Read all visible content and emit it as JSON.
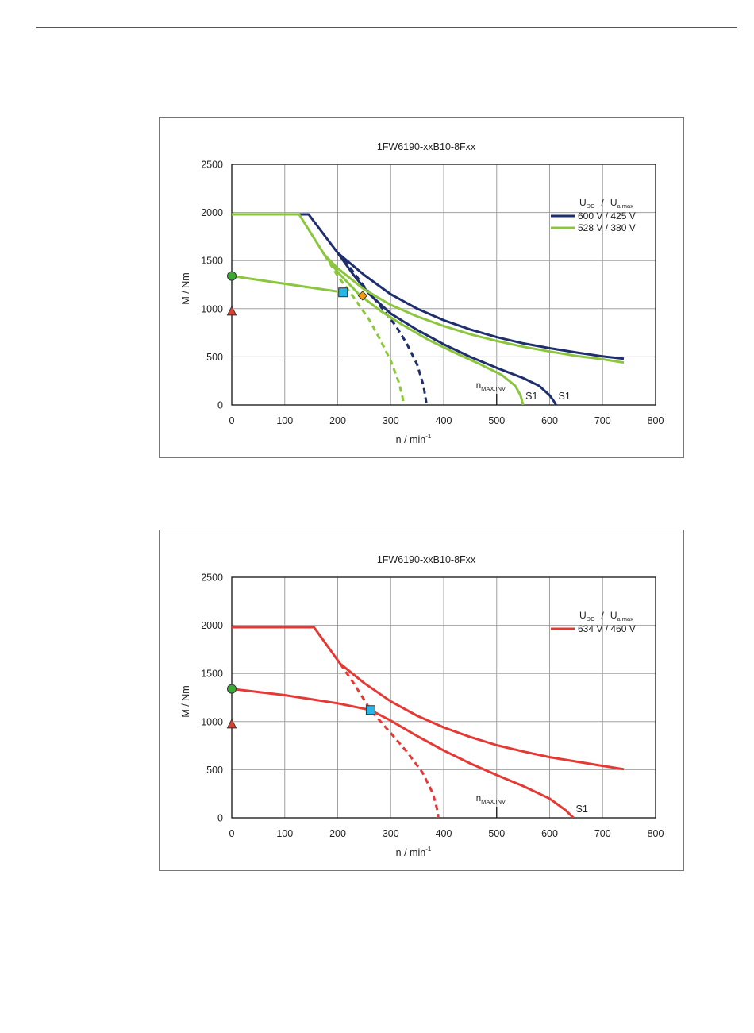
{
  "chart_data": [
    {
      "type": "line",
      "title": "1FW6190-xxB10-8Fxx",
      "xlabel": "n / min",
      "xlabel_sup": "-1",
      "ylabel": "M / Nm",
      "xlim": [
        0,
        800
      ],
      "ylim": [
        0,
        2500
      ],
      "xticks": [
        0,
        100,
        200,
        300,
        400,
        500,
        600,
        700,
        800
      ],
      "yticks": [
        0,
        500,
        1000,
        1500,
        2000,
        2500
      ],
      "grid": true,
      "legend": {
        "placement": "top-right",
        "header_U": "U",
        "header_dc": "DC",
        "header_slash": "/",
        "header_Ua": "U",
        "header_amax": "a max"
      },
      "series": [
        {
          "name": "600 V / 425 V",
          "color": "#1f2f6e",
          "curves": [
            {
              "style": "solid",
              "points": [
                [
                  0,
                  1980
                ],
                [
                  145,
                  1980
                ],
                [
                  200,
                  1580
                ],
                [
                  250,
                  1350
                ],
                [
                  300,
                  1150
                ],
                [
                  350,
                  1000
                ],
                [
                  400,
                  880
                ],
                [
                  450,
                  785
                ],
                [
                  500,
                  705
                ],
                [
                  550,
                  640
                ],
                [
                  600,
                  590
                ],
                [
                  650,
                  545
                ],
                [
                  700,
                  505
                ],
                [
                  740,
                  480
                ]
              ]
            },
            {
              "style": "solid",
              "points": [
                [
                  200,
                  1580
                ],
                [
                  230,
                  1350
                ],
                [
                  260,
                  1150
                ],
                [
                  300,
                  950
                ],
                [
                  350,
                  780
                ],
                [
                  400,
                  630
                ],
                [
                  450,
                  500
                ],
                [
                  500,
                  385
                ],
                [
                  550,
                  280
                ],
                [
                  580,
                  200
                ],
                [
                  600,
                  100
                ],
                [
                  608,
                  40
                ],
                [
                  612,
                  0
                ]
              ]
            },
            {
              "style": "dashed",
              "points": [
                [
                  200,
                  1580
                ],
                [
                  220,
                  1450
                ],
                [
                  250,
                  1230
                ],
                [
                  280,
                  1030
                ],
                [
                  310,
                  820
                ],
                [
                  330,
                  640
                ],
                [
                  350,
                  420
                ],
                [
                  362,
                  200
                ],
                [
                  368,
                  0
                ]
              ]
            }
          ]
        },
        {
          "name": "528 V / 380 V",
          "color": "#8cc63f",
          "curves": [
            {
              "style": "solid",
              "points": [
                [
                  0,
                  1980
                ],
                [
                  127,
                  1980
                ],
                [
                  175,
                  1560
                ],
                [
                  200,
                  1420
                ],
                [
                  250,
                  1200
                ],
                [
                  300,
                  1040
                ],
                [
                  350,
                  920
                ],
                [
                  400,
                  820
                ],
                [
                  450,
                  735
                ],
                [
                  500,
                  665
                ],
                [
                  550,
                  605
                ],
                [
                  600,
                  555
                ],
                [
                  650,
                  510
                ],
                [
                  700,
                  475
                ],
                [
                  740,
                  440
                ]
              ]
            },
            {
              "style": "solid",
              "points": [
                [
                  175,
                  1560
                ],
                [
                  200,
                  1380
                ],
                [
                  240,
                  1150
                ],
                [
                  280,
                  980
                ],
                [
                  320,
                  840
                ],
                [
                  370,
                  680
                ],
                [
                  420,
                  545
                ],
                [
                  470,
                  420
                ],
                [
                  510,
                  310
                ],
                [
                  535,
                  200
                ],
                [
                  545,
                  100
                ],
                [
                  550,
                  0
                ]
              ]
            },
            {
              "style": "dashed",
              "points": [
                [
                  175,
                  1560
                ],
                [
                  200,
                  1340
                ],
                [
                  230,
                  1120
                ],
                [
                  260,
                  880
                ],
                [
                  280,
                  680
                ],
                [
                  300,
                  460
                ],
                [
                  315,
                  240
                ],
                [
                  322,
                  90
                ],
                [
                  325,
                  0
                ]
              ]
            },
            {
              "style": "solid",
              "points": [
                [
                  0,
                  1340
                ],
                [
                  210,
                  1170
                ]
              ]
            }
          ]
        }
      ],
      "markers": [
        {
          "shape": "circle",
          "x": 0,
          "y": 1340,
          "color": "#3aaa35"
        },
        {
          "shape": "triangle",
          "x": 0,
          "y": 975,
          "color": "#e03c31"
        },
        {
          "shape": "square",
          "x": 210,
          "y": 1170,
          "color": "#29b6e6"
        },
        {
          "shape": "diamond",
          "x": 247,
          "y": 1135,
          "color": "#f39c12"
        }
      ],
      "annotations": [
        {
          "kind": "nmax",
          "text": "n",
          "sub": "MAX,INV",
          "x": 500
        },
        {
          "kind": "label",
          "text": "S1",
          "x": 550,
          "y": 0
        },
        {
          "kind": "label",
          "text": "S1",
          "x": 612,
          "y": 0
        }
      ]
    },
    {
      "type": "line",
      "title": "1FW6190-xxB10-8Fxx",
      "xlabel": "n / min",
      "xlabel_sup": "-1",
      "ylabel": "M / Nm",
      "xlim": [
        0,
        800
      ],
      "ylim": [
        0,
        2500
      ],
      "xticks": [
        0,
        100,
        200,
        300,
        400,
        500,
        600,
        700,
        800
      ],
      "yticks": [
        0,
        500,
        1000,
        1500,
        2000,
        2500
      ],
      "grid": true,
      "legend": {
        "placement": "top-right",
        "header_U": "U",
        "header_dc": "DC",
        "header_slash": "/",
        "header_Ua": "U",
        "header_amax": "a max"
      },
      "series": [
        {
          "name": "634 V / 460 V",
          "color": "#e53935",
          "curves": [
            {
              "style": "solid",
              "points": [
                [
                  0,
                  1980
                ],
                [
                  155,
                  1980
                ],
                [
                  205,
                  1600
                ],
                [
                  250,
                  1400
                ],
                [
                  300,
                  1210
                ],
                [
                  350,
                  1060
                ],
                [
                  400,
                  940
                ],
                [
                  450,
                  840
                ],
                [
                  500,
                  755
                ],
                [
                  550,
                  690
                ],
                [
                  600,
                  630
                ],
                [
                  650,
                  585
                ],
                [
                  700,
                  540
                ],
                [
                  740,
                  505
                ]
              ]
            },
            {
              "style": "solid",
              "points": [
                [
                  0,
                  1340
                ],
                [
                  100,
                  1275
                ],
                [
                  200,
                  1190
                ],
                [
                  262,
                  1120
                ],
                [
                  300,
                  1010
                ],
                [
                  350,
                  850
                ],
                [
                  400,
                  700
                ],
                [
                  450,
                  565
                ],
                [
                  500,
                  445
                ],
                [
                  550,
                  330
                ],
                [
                  600,
                  200
                ],
                [
                  630,
                  80
                ],
                [
                  645,
                  0
                ]
              ]
            },
            {
              "style": "dashed",
              "points": [
                [
                  205,
                  1600
                ],
                [
                  230,
                  1400
                ],
                [
                  262,
                  1120
                ],
                [
                  300,
                  880
                ],
                [
                  330,
                  690
                ],
                [
                  360,
                  470
                ],
                [
                  380,
                  250
                ],
                [
                  388,
                  80
                ],
                [
                  390,
                  0
                ]
              ]
            }
          ]
        }
      ],
      "markers": [
        {
          "shape": "circle",
          "x": 0,
          "y": 1340,
          "color": "#3aaa35"
        },
        {
          "shape": "triangle",
          "x": 0,
          "y": 975,
          "color": "#e03c31"
        },
        {
          "shape": "square",
          "x": 262,
          "y": 1120,
          "color": "#29b6e6"
        }
      ],
      "annotations": [
        {
          "kind": "nmax",
          "text": "n",
          "sub": "MAX,INV",
          "x": 500
        },
        {
          "kind": "label",
          "text": "S1",
          "x": 645,
          "y": 0
        }
      ]
    }
  ]
}
